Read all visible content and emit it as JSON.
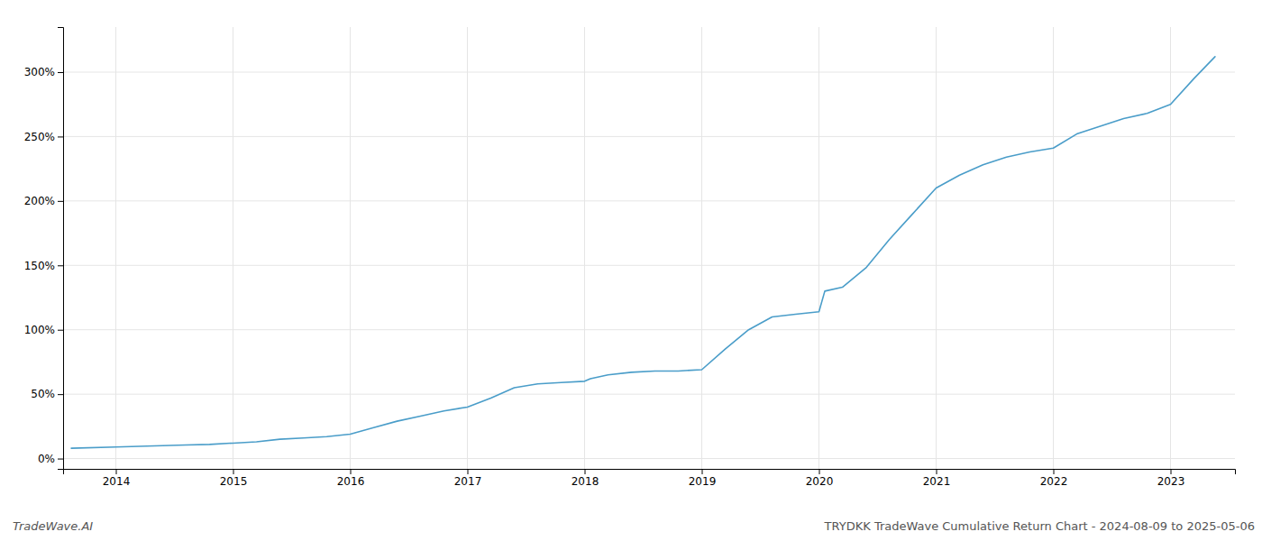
{
  "chart_data": {
    "type": "line",
    "title": "TRYDKK TradeWave Cumulative Return Chart - 2024-08-09 to 2025-05-06",
    "subtitle": "TradeWave.AI",
    "x": [
      2013.62,
      2014.0,
      2014.2,
      2014.4,
      2014.6,
      2014.8,
      2015.0,
      2015.2,
      2015.4,
      2015.6,
      2015.8,
      2016.0,
      2016.2,
      2016.4,
      2016.6,
      2016.8,
      2017.0,
      2017.2,
      2017.4,
      2017.6,
      2017.8,
      2018.0,
      2018.05,
      2018.2,
      2018.4,
      2018.6,
      2018.8,
      2019.0,
      2019.2,
      2019.4,
      2019.6,
      2019.8,
      2020.0,
      2020.05,
      2020.2,
      2020.4,
      2020.6,
      2020.8,
      2021.0,
      2021.2,
      2021.4,
      2021.6,
      2021.8,
      2022.0,
      2022.2,
      2022.4,
      2022.6,
      2022.8,
      2023.0,
      2023.2,
      2023.38
    ],
    "values": [
      8,
      9,
      9.5,
      10,
      10.5,
      11,
      12,
      13,
      15,
      16,
      17,
      19,
      24,
      29,
      33,
      37,
      40,
      47,
      55,
      58,
      59,
      60,
      62,
      65,
      67,
      68,
      68,
      69,
      85,
      100,
      110,
      112,
      114,
      130,
      133,
      148,
      170,
      190,
      210,
      220,
      228,
      234,
      238,
      241,
      252,
      258,
      264,
      268,
      275,
      295,
      312
    ],
    "color": "#4a9dc9",
    "xlim": [
      2013.55,
      2023.55
    ],
    "xticks": [
      2014,
      2015,
      2016,
      2017,
      2018,
      2019,
      2020,
      2021,
      2022,
      2023
    ],
    "ylim": [
      -8,
      335
    ],
    "yticks": [
      {
        "value": 0,
        "label": "0%"
      },
      {
        "value": 50,
        "label": "50%"
      },
      {
        "value": 100,
        "label": "100%"
      },
      {
        "value": 150,
        "label": "150%"
      },
      {
        "value": 200,
        "label": "200%"
      },
      {
        "value": 250,
        "label": "250%"
      },
      {
        "value": 300,
        "label": "300%"
      }
    ],
    "grid": true
  }
}
